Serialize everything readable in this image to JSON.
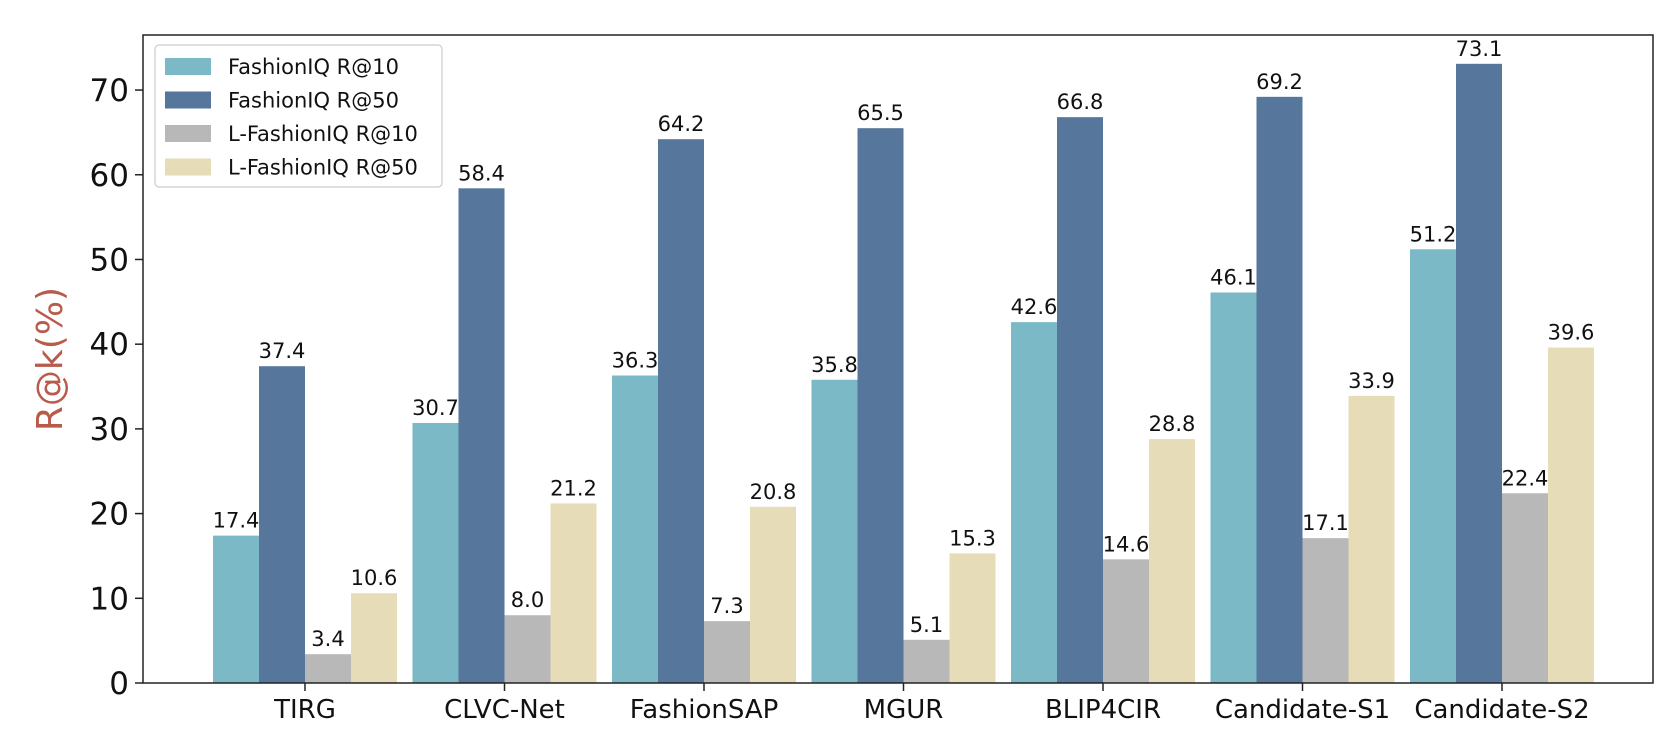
{
  "chart_data": {
    "type": "bar",
    "title": "",
    "xlabel": "",
    "ylabel": "R@k(%)",
    "ylim": [
      0,
      76.5
    ],
    "yticks": [
      0,
      10,
      20,
      30,
      40,
      50,
      60,
      70
    ],
    "grid": false,
    "legend_position": "top-left",
    "categories": [
      "TIRG",
      "CLVC-Net",
      "FashionSAP",
      "MGUR",
      "BLIP4CIR",
      "Candidate-S1",
      "Candidate-S2"
    ],
    "series": [
      {
        "name": "FashionIQ R@10",
        "color": "#7ab9c5",
        "values": [
          17.4,
          30.7,
          36.3,
          35.8,
          42.6,
          46.1,
          51.2
        ]
      },
      {
        "name": "FashionIQ R@50",
        "color": "#56769b",
        "values": [
          37.4,
          58.4,
          64.2,
          65.5,
          66.8,
          69.2,
          73.1
        ]
      },
      {
        "name": "L-FashionIQ R@10",
        "color": "#b8b8b8",
        "values": [
          3.4,
          8.0,
          7.3,
          5.1,
          14.6,
          17.1,
          22.4
        ]
      },
      {
        "name": "L-FashionIQ R@50",
        "color": "#e6dcb7",
        "values": [
          10.6,
          21.2,
          20.8,
          15.3,
          28.8,
          33.9,
          39.6
        ]
      }
    ],
    "ylabel_color": "#b85b4a"
  }
}
